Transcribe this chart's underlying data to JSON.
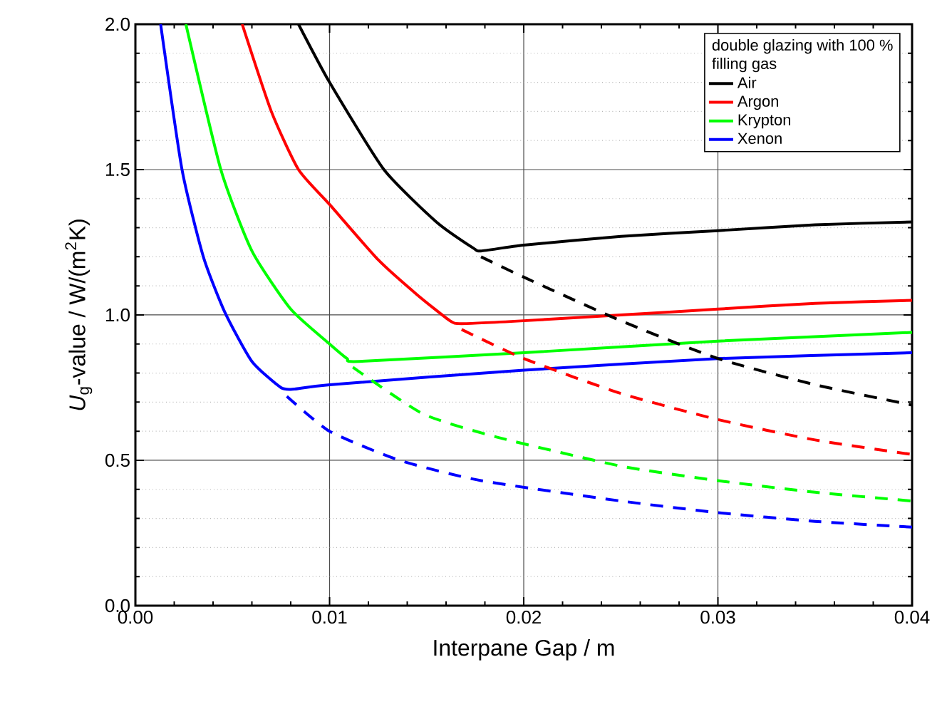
{
  "chart_data": {
    "type": "line",
    "xlabel": "Interpane Gap / m",
    "ylabel": "*U*$_{g}$-value / W/(m$^{2}$K)",
    "legend_title": "double glazing with 100 % filling gas",
    "xlim": [
      0,
      0.04
    ],
    "ylim": [
      0,
      2.0
    ],
    "xticks": [
      {
        "value": 0,
        "label": "0.00"
      },
      {
        "value": 0.01,
        "label": "0.01"
      },
      {
        "value": 0.02,
        "label": "0.02"
      },
      {
        "value": 0.03,
        "label": "0.03"
      },
      {
        "value": 0.04,
        "label": "0.04"
      }
    ],
    "yticks": [
      {
        "value": 0,
        "label": "0.0"
      },
      {
        "value": 0.5,
        "label": "0.5"
      },
      {
        "value": 1.0,
        "label": "1.0"
      },
      {
        "value": 1.5,
        "label": "1.5"
      },
      {
        "value": 2.0,
        "label": "2.0"
      }
    ],
    "grid": true,
    "legend": "top right",
    "marker": "none",
    "series": [
      {
        "name": "Air",
        "color": "#000000",
        "line_style": "solid",
        "x": [
          0.0084,
          0.01,
          0.0128,
          0.0155,
          0.0174,
          0.0178,
          0.02,
          0.025,
          0.03,
          0.035,
          0.04
        ],
        "values": [
          2.0,
          1.8,
          1.5,
          1.32,
          1.23,
          1.22,
          1.24,
          1.27,
          1.29,
          1.31,
          1.32
        ]
      },
      {
        "name": "Argon",
        "color": "#ff0000",
        "line_style": "solid",
        "x": [
          0.0055,
          0.007,
          0.0084,
          0.01,
          0.0125,
          0.0145,
          0.0162,
          0.0168,
          0.02,
          0.025,
          0.03,
          0.035,
          0.04
        ],
        "values": [
          2.0,
          1.7,
          1.5,
          1.38,
          1.19,
          1.07,
          0.98,
          0.97,
          0.98,
          1.0,
          1.02,
          1.04,
          1.05
        ]
      },
      {
        "name": "Krypton",
        "color": "#00ff00",
        "line_style": "solid",
        "x": [
          0.0026,
          0.0044,
          0.006,
          0.008,
          0.01,
          0.0109,
          0.0115,
          0.02,
          0.03,
          0.04
        ],
        "values": [
          2.0,
          1.5,
          1.22,
          1.02,
          0.9,
          0.85,
          0.84,
          0.87,
          0.91,
          0.94
        ]
      },
      {
        "name": "Xenon",
        "color": "#0000ff",
        "line_style": "solid",
        "x": [
          0.0013,
          0.0024,
          0.0035,
          0.0046,
          0.006,
          0.0075,
          0.0082,
          0.01,
          0.02,
          0.03,
          0.04
        ],
        "values": [
          2.0,
          1.5,
          1.2,
          1.01,
          0.84,
          0.75,
          0.745,
          0.76,
          0.81,
          0.85,
          0.87
        ]
      },
      {
        "color": "#000000",
        "line_style": "dashed",
        "x": [
          0.0178,
          0.02,
          0.025,
          0.03,
          0.035,
          0.04
        ],
        "values": [
          1.2,
          1.13,
          0.98,
          0.85,
          0.76,
          0.69
        ]
      },
      {
        "color": "#ff0000",
        "line_style": "dashed",
        "x": [
          0.0168,
          0.02,
          0.025,
          0.03,
          0.035,
          0.04
        ],
        "values": [
          0.95,
          0.85,
          0.73,
          0.64,
          0.57,
          0.52
        ]
      },
      {
        "color": "#00ff00",
        "line_style": "dashed",
        "x": [
          0.0112,
          0.0148,
          0.0186,
          0.025,
          0.03,
          0.035,
          0.04
        ],
        "values": [
          0.82,
          0.66,
          0.58,
          0.48,
          0.43,
          0.39,
          0.36
        ]
      },
      {
        "color": "#0000ff",
        "line_style": "dashed",
        "x": [
          0.0078,
          0.01,
          0.0136,
          0.0178,
          0.025,
          0.03,
          0.035,
          0.04
        ],
        "values": [
          0.72,
          0.6,
          0.5,
          0.43,
          0.36,
          0.32,
          0.29,
          0.27
        ]
      }
    ]
  }
}
